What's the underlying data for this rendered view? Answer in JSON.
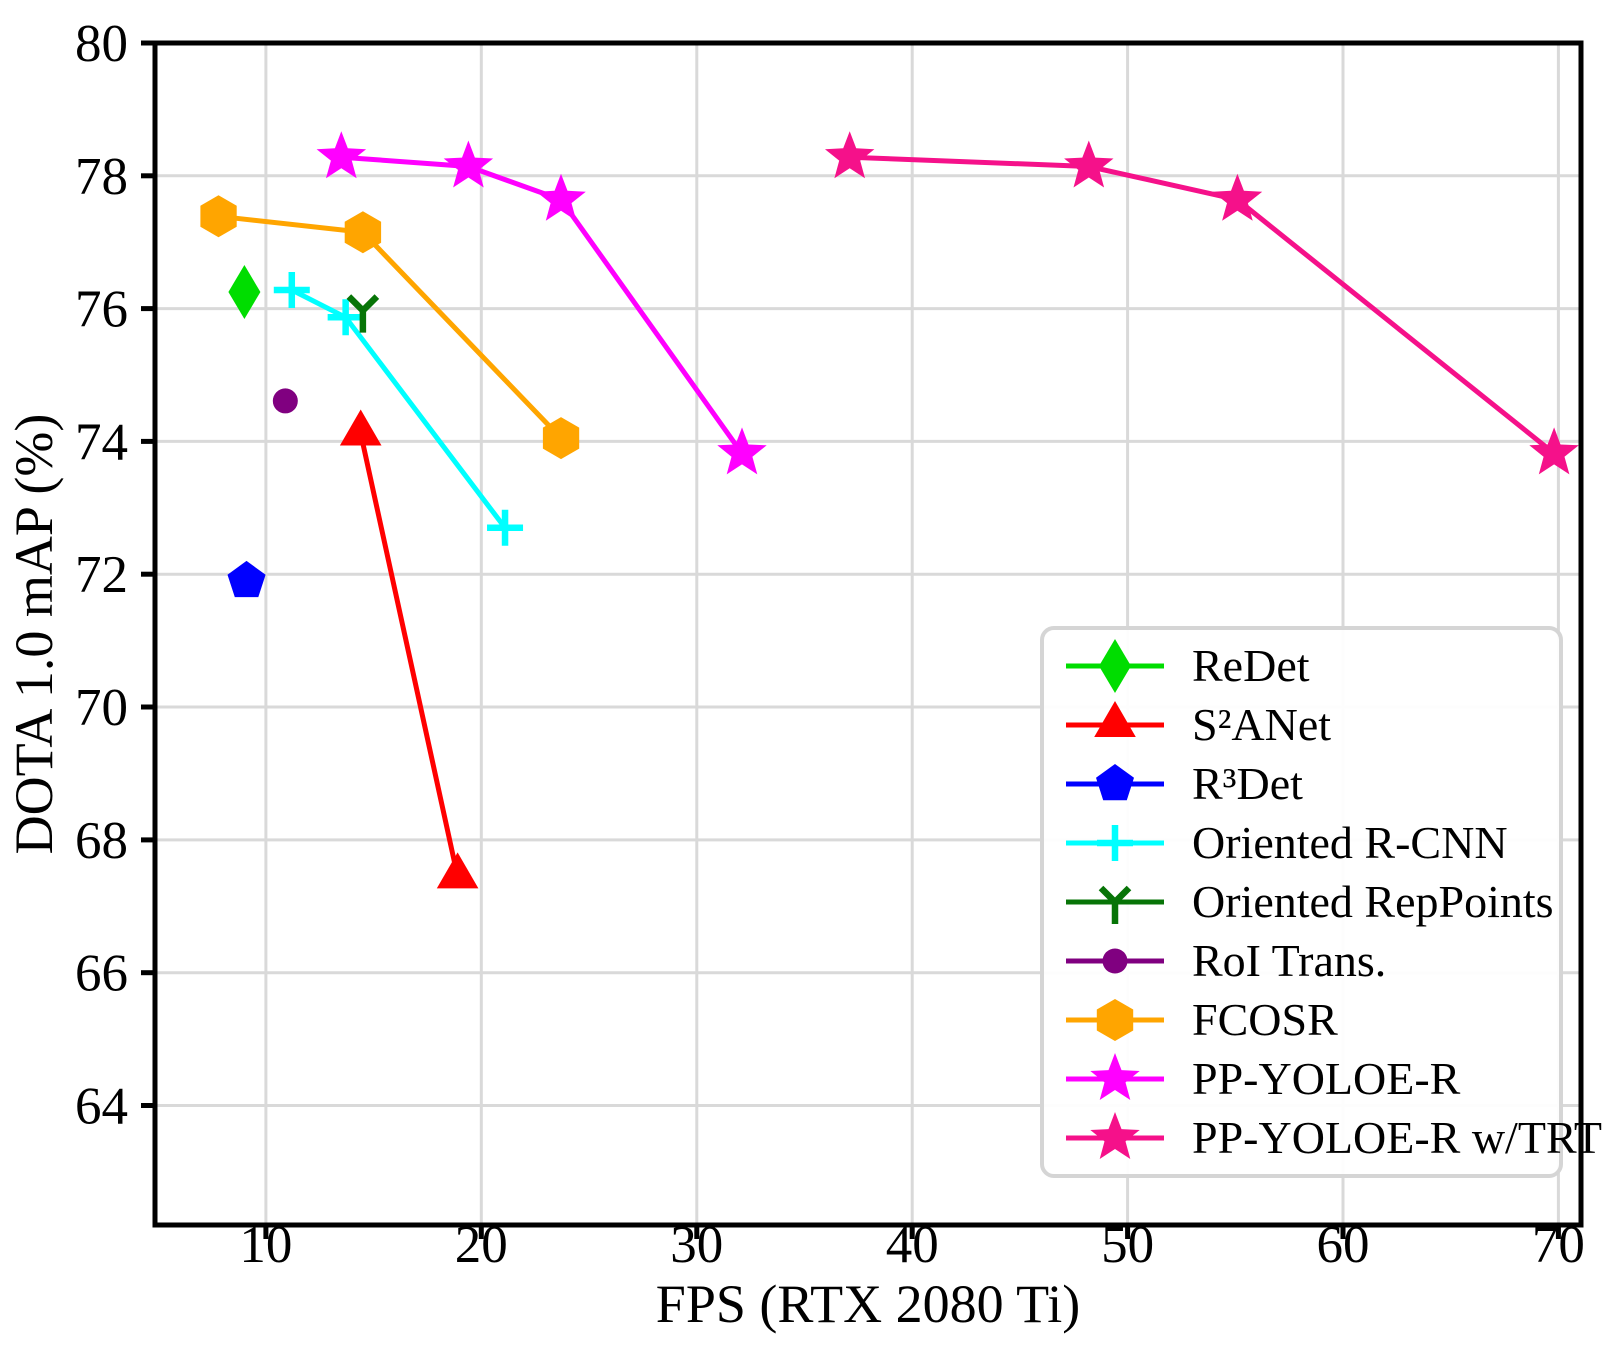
{
  "page": {
    "background": "#ffffff"
  },
  "chart_data": {
    "type": "line",
    "title": "",
    "xlabel": "FPS (RTX 2080 Ti)",
    "ylabel": "DOTA 1.0 mAP (%)",
    "xlim": [
      4.85,
      71.05
    ],
    "ylim": [
      62.2,
      80
    ],
    "xticks": [
      10,
      20,
      30,
      40,
      50,
      60,
      70
    ],
    "yticks": [
      64,
      66,
      68,
      70,
      72,
      74,
      76,
      78,
      80
    ],
    "grid": true,
    "grid_color": "#d9d9d9",
    "axis_color": "#000000",
    "legend_position": "lower right",
    "series": [
      {
        "name": "ReDet",
        "color": "#00dd00",
        "marker": "thin-diamond",
        "points": [
          [
            9.0,
            76.25
          ]
        ]
      },
      {
        "name": "S²ANet",
        "color": "#ff0000",
        "marker": "triangle-up",
        "points": [
          [
            14.4,
            74.12
          ],
          [
            18.9,
            67.45
          ]
        ]
      },
      {
        "name": "R³Det",
        "color": "#0000ff",
        "marker": "pentagon",
        "points": [
          [
            9.1,
            71.9
          ]
        ]
      },
      {
        "name": "Oriented R-CNN",
        "color": "#00ffff",
        "marker": "plus",
        "points": [
          [
            11.2,
            76.28
          ],
          [
            13.7,
            75.87
          ],
          [
            21.1,
            72.7
          ]
        ]
      },
      {
        "name": "Oriented RepPoints",
        "color": "#077407",
        "marker": "tri-down",
        "points": [
          [
            14.5,
            75.97
          ]
        ]
      },
      {
        "name": "RoI Trans.",
        "color": "#800080",
        "marker": "circle",
        "points": [
          [
            10.9,
            74.61
          ]
        ]
      },
      {
        "name": "FCOSR",
        "color": "#ffa500",
        "marker": "hexagon",
        "points": [
          [
            7.8,
            77.39
          ],
          [
            14.5,
            77.15
          ],
          [
            23.7,
            74.05
          ]
        ]
      },
      {
        "name": "PP-YOLOE-R",
        "color": "#ff00ff",
        "marker": "star",
        "points": [
          [
            13.5,
            78.28
          ],
          [
            19.4,
            78.14
          ],
          [
            23.7,
            77.64
          ],
          [
            32.1,
            73.82
          ]
        ]
      },
      {
        "name": "PP-YOLOE-R w/TRT",
        "color": "#f5118a",
        "marker": "star",
        "points": [
          [
            37.1,
            78.28
          ],
          [
            48.2,
            78.14
          ],
          [
            55.1,
            77.64
          ],
          [
            69.8,
            73.82
          ]
        ]
      }
    ]
  }
}
